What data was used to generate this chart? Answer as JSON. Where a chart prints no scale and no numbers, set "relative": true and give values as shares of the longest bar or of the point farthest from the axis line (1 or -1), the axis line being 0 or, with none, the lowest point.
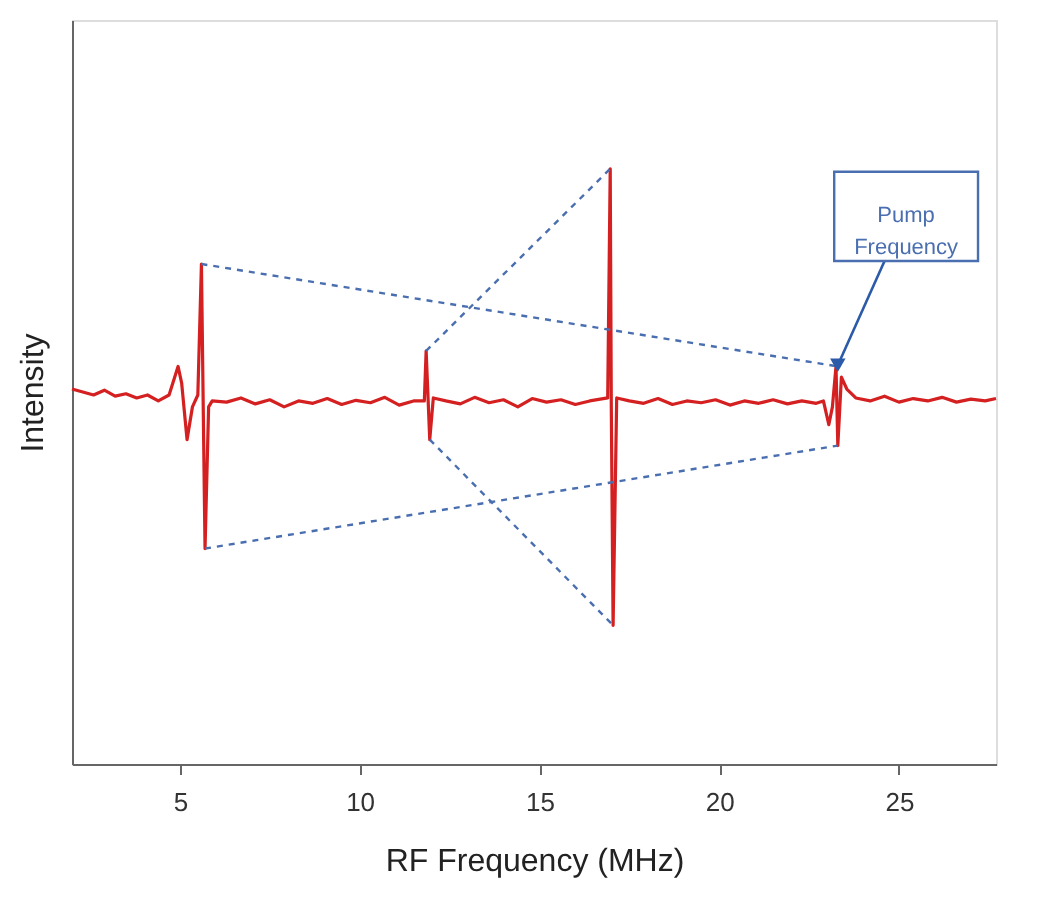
{
  "chart_data": {
    "type": "line",
    "relative": true,
    "xlabel": "RF Frequency (MHz)",
    "ylabel": "Intensity",
    "xlim": [
      2,
      27.7
    ],
    "xticks": [
      5,
      10,
      15,
      20,
      25
    ],
    "grid": false,
    "marker": "none",
    "annotations": [
      {
        "text": "Pump Frequency",
        "x": 23.3,
        "y": 0.67
      }
    ],
    "series": [
      {
        "color": "#d42020",
        "line_style": "solid",
        "x": [
          2,
          2.3,
          2.6,
          2.9,
          3.2,
          3.5,
          3.8,
          4.1,
          4.4,
          4.7,
          4.95,
          5.05,
          5.2,
          5.35,
          5.5,
          5.6,
          5.65,
          5.7,
          5.8,
          5.9,
          6.3,
          6.7,
          7.1,
          7.5,
          7.9,
          8.3,
          8.7,
          9.1,
          9.5,
          9.9,
          10.3,
          10.7,
          11.1,
          11.5,
          11.8,
          11.85,
          11.95,
          12.05,
          12.4,
          12.8,
          13.2,
          13.6,
          14,
          14.4,
          14.8,
          15.2,
          15.6,
          16,
          16.4,
          16.9,
          16.97,
          17.0,
          17.05,
          17.15,
          17.5,
          17.9,
          18.3,
          18.7,
          19.1,
          19.5,
          19.9,
          20.3,
          20.7,
          21.1,
          21.5,
          21.9,
          22.3,
          22.7,
          22.9,
          23.05,
          23.15,
          23.25,
          23.3,
          23.4,
          23.55,
          23.8,
          24.2,
          24.6,
          25,
          25.4,
          25.8,
          26.2,
          26.6,
          27,
          27.4,
          27.7
        ],
        "values": [
          0.63,
          0.625,
          0.62,
          0.628,
          0.618,
          0.622,
          0.615,
          0.62,
          0.61,
          0.62,
          0.668,
          0.64,
          0.545,
          0.6,
          0.62,
          0.84,
          0.6,
          0.362,
          0.6,
          0.61,
          0.608,
          0.615,
          0.605,
          0.612,
          0.6,
          0.61,
          0.606,
          0.614,
          0.604,
          0.611,
          0.607,
          0.616,
          0.603,
          0.61,
          0.61,
          0.694,
          0.545,
          0.615,
          0.61,
          0.605,
          0.616,
          0.607,
          0.612,
          0.6,
          0.614,
          0.608,
          0.612,
          0.604,
          0.61,
          0.615,
          1.0,
          0.6,
          0.233,
          0.615,
          0.61,
          0.606,
          0.614,
          0.604,
          0.61,
          0.607,
          0.612,
          0.603,
          0.61,
          0.606,
          0.612,
          0.605,
          0.61,
          0.606,
          0.61,
          0.57,
          0.6,
          0.668,
          0.535,
          0.65,
          0.63,
          0.615,
          0.61,
          0.618,
          0.608,
          0.614,
          0.61,
          0.616,
          0.608,
          0.613,
          0.61,
          0.614
        ]
      },
      {
        "type": "line",
        "color": "#4a6fb0",
        "line_style": "dashed",
        "x": [
          5.6,
          23.3
        ],
        "values": [
          0.84,
          0.668
        ]
      },
      {
        "type": "line",
        "color": "#4a6fb0",
        "line_style": "dashed",
        "x": [
          5.7,
          23.3
        ],
        "values": [
          0.362,
          0.535
        ]
      },
      {
        "type": "line",
        "color": "#4a6fb0",
        "line_style": "dashed",
        "x": [
          11.85,
          16.97
        ],
        "values": [
          0.694,
          1.0
        ]
      },
      {
        "type": "line",
        "color": "#4a6fb0",
        "line_style": "dashed",
        "x": [
          11.95,
          17.05
        ],
        "values": [
          0.545,
          0.233
        ]
      }
    ]
  }
}
